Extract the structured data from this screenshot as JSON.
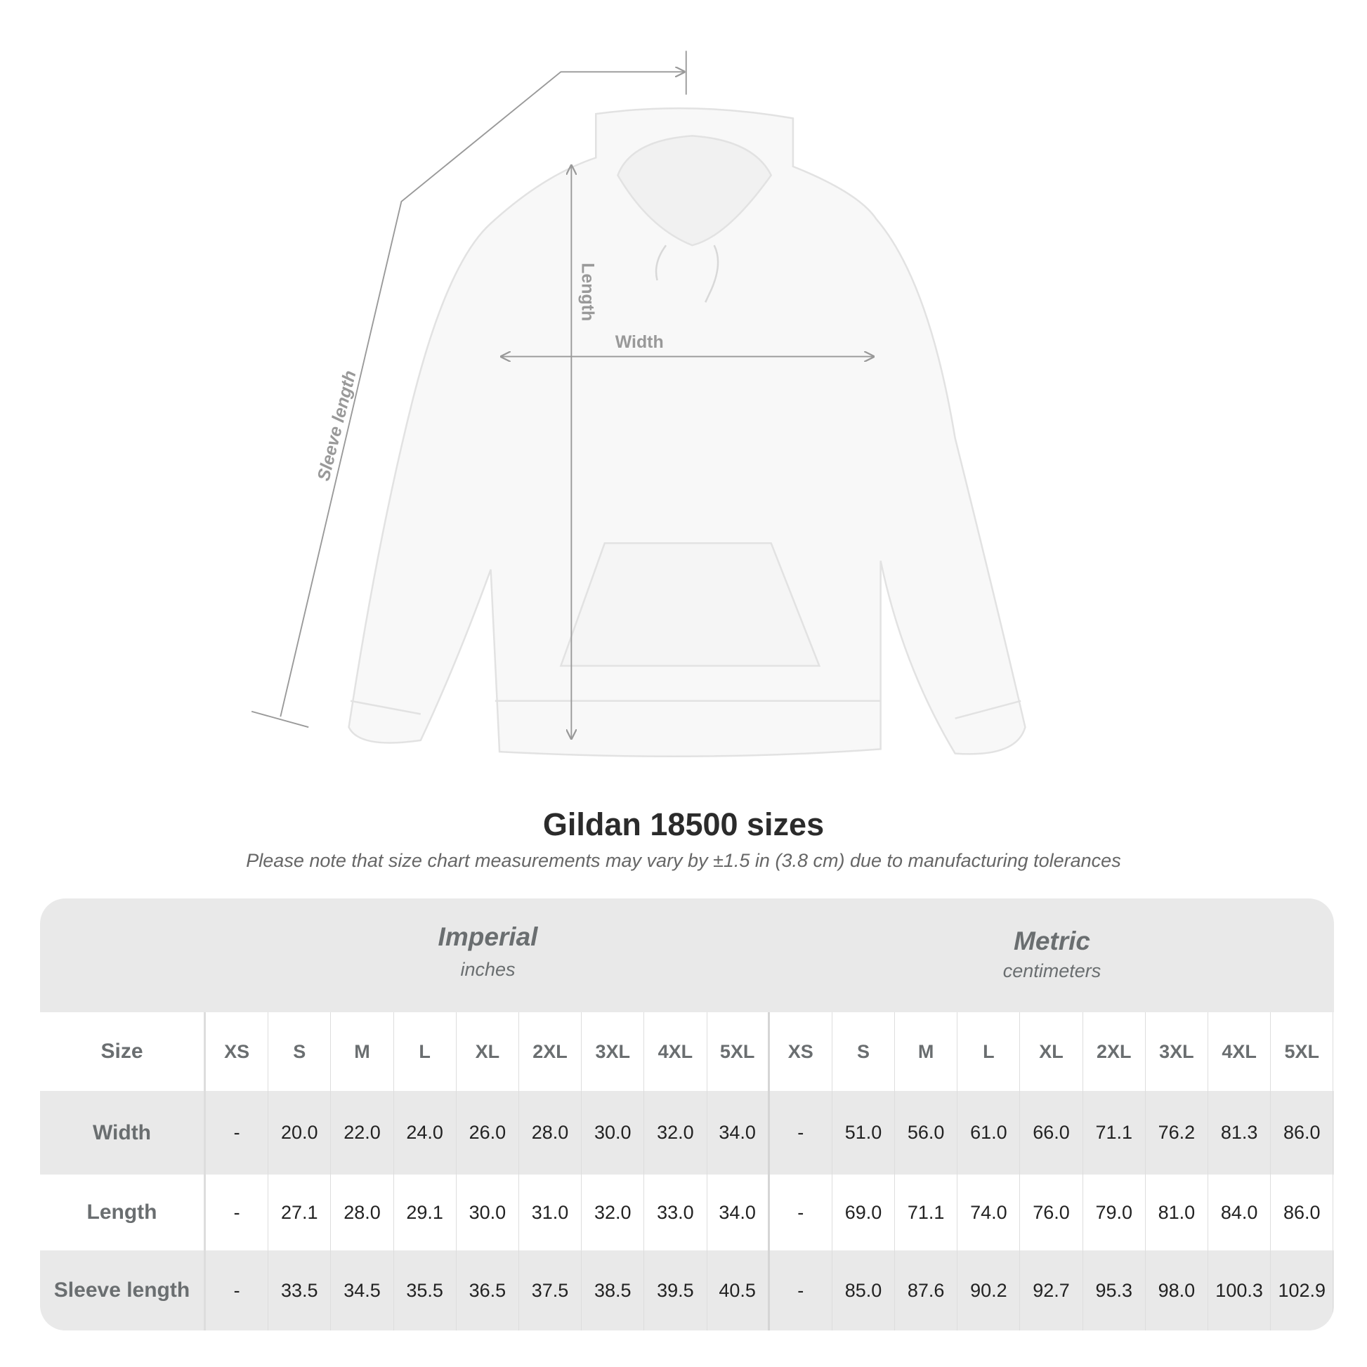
{
  "diagram": {
    "labels": {
      "length": "Length",
      "width": "Width",
      "sleeve": "Sleeve length"
    }
  },
  "title": "Gildan 18500 sizes",
  "note": "Please note that size chart measurements may vary by ±1.5 in (3.8 cm) due to manufacturing tolerances",
  "table": {
    "imperial": {
      "label": "Imperial",
      "unit": "inches"
    },
    "metric": {
      "label": "Metric",
      "unit": "centimeters"
    },
    "size_label": "Size",
    "sizes": [
      "XS",
      "S",
      "M",
      "L",
      "XL",
      "2XL",
      "3XL",
      "4XL",
      "5XL"
    ],
    "rows": [
      {
        "label": "Width",
        "imperial": [
          "-",
          "20.0",
          "22.0",
          "24.0",
          "26.0",
          "28.0",
          "30.0",
          "32.0",
          "34.0"
        ],
        "metric": [
          "-",
          "51.0",
          "56.0",
          "61.0",
          "66.0",
          "71.1",
          "76.2",
          "81.3",
          "86.0"
        ]
      },
      {
        "label": "Length",
        "imperial": [
          "-",
          "27.1",
          "28.0",
          "29.1",
          "30.0",
          "31.0",
          "32.0",
          "33.0",
          "34.0"
        ],
        "metric": [
          "-",
          "69.0",
          "71.1",
          "74.0",
          "76.0",
          "79.0",
          "81.0",
          "84.0",
          "86.0"
        ]
      },
      {
        "label": "Sleeve length",
        "imperial": [
          "-",
          "33.5",
          "34.5",
          "35.5",
          "36.5",
          "37.5",
          "38.5",
          "39.5",
          "40.5"
        ],
        "metric": [
          "-",
          "85.0",
          "87.6",
          "90.2",
          "92.7",
          "95.3",
          "98.0",
          "100.3",
          "102.9"
        ]
      }
    ]
  },
  "colors": {
    "band": "#e9e9e9",
    "header_text": "#6a6e70",
    "measure_line": "#999999"
  }
}
